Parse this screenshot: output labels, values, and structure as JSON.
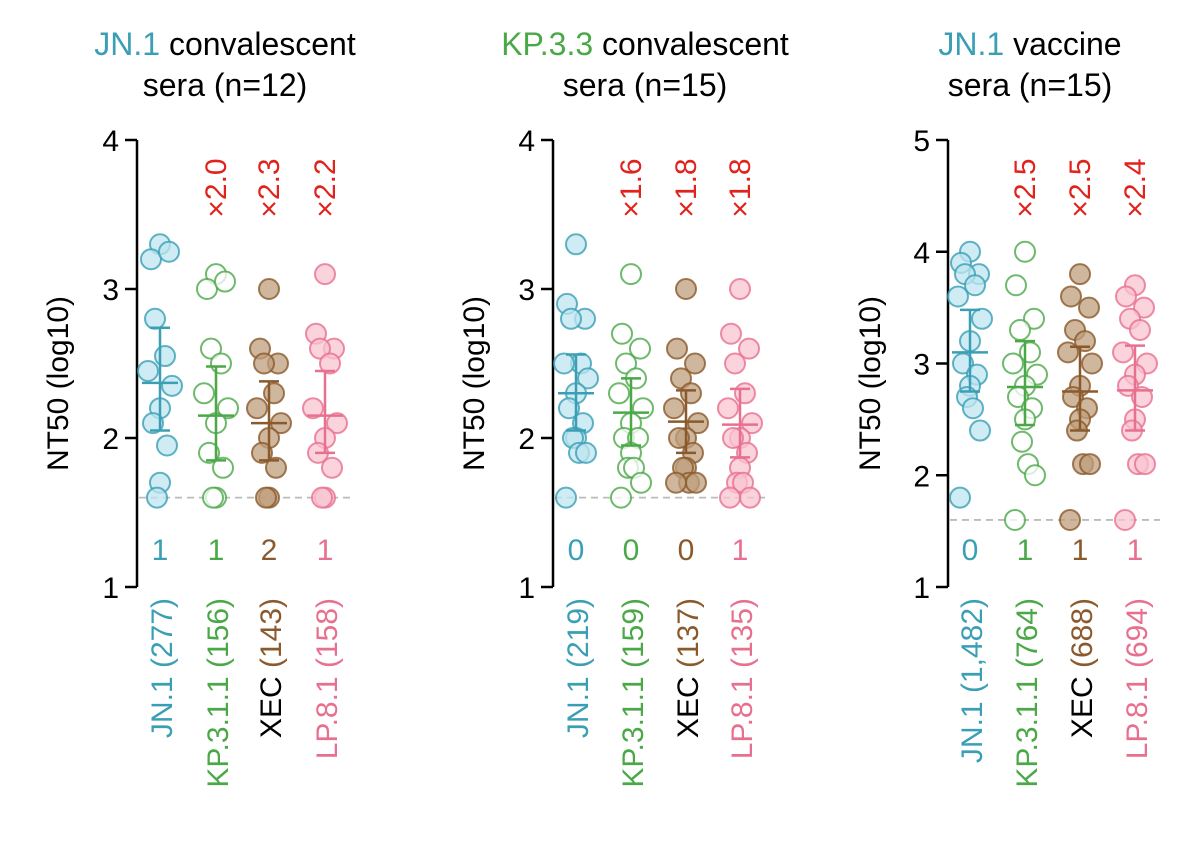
{
  "colors": {
    "jn1": "#3a9fb5",
    "jn1_fill": "#bfe6f0",
    "kp311": "#4aa847",
    "kp311_fill": "#ffffff",
    "xec": "#8a5a2c",
    "xec_fill": "#bf9f7d",
    "lp81": "#e8708f",
    "lp81_fill": "#f8c4d2",
    "fold": "#e0231c",
    "axis": "#000000",
    "lod": "#bbbbbb"
  },
  "chart_data": [
    {
      "type": "scatter",
      "title_parts": [
        {
          "text": "JN.1",
          "color": "jn1"
        },
        {
          "text": " convalescent",
          "color": "axis"
        }
      ],
      "title_line2": "sera (n=12)",
      "ylabel": "NT50 (log10)",
      "ylim": [
        1,
        4
      ],
      "yticks": [
        "1",
        "2",
        "3",
        "4"
      ],
      "lod": 1.6,
      "categories": [
        {
          "name": "JN.1",
          "count": "(277)",
          "color": "jn1",
          "fill": "jn1_fill",
          "fold": "",
          "below_lod": "1",
          "mean": 2.37,
          "err": [
            2.05,
            2.74
          ],
          "points": [
            3.3,
            3.2,
            3.25,
            2.8,
            2.55,
            2.45,
            2.35,
            2.2,
            2.1,
            1.95,
            1.7,
            1.6
          ]
        },
        {
          "name": "KP.3.1.1",
          "count": "(156)",
          "color": "kp311",
          "fill": "kp311_fill",
          "fold": "×2.0",
          "below_lod": "1",
          "mean": 2.15,
          "err": [
            1.85,
            2.48
          ],
          "points": [
            3.1,
            3.0,
            3.05,
            2.6,
            2.5,
            2.3,
            2.2,
            2.1,
            1.9,
            1.8,
            1.6,
            1.6
          ]
        },
        {
          "name": "XEC",
          "count": "(143)",
          "color": "xec",
          "fill": "xec_fill",
          "fold": "×2.3",
          "below_lod": "2",
          "mean": 2.1,
          "err": [
            1.85,
            2.38
          ],
          "points": [
            3.0,
            2.6,
            2.5,
            2.5,
            2.3,
            2.2,
            2.1,
            2.0,
            1.9,
            1.8,
            1.6,
            1.6
          ]
        },
        {
          "name": "LP.8.1",
          "count": "(158)",
          "color": "lp81",
          "fill": "lp81_fill",
          "fold": "×2.2",
          "below_lod": "1",
          "mean": 2.15,
          "err": [
            1.9,
            2.45
          ],
          "points": [
            3.1,
            2.7,
            2.6,
            2.6,
            2.5,
            2.2,
            2.1,
            2.0,
            1.9,
            1.8,
            1.6,
            1.6
          ]
        }
      ]
    },
    {
      "type": "scatter",
      "title_parts": [
        {
          "text": "KP.3.3",
          "color": "kp311"
        },
        {
          "text": " convalescent",
          "color": "axis"
        }
      ],
      "title_line2": "sera (n=15)",
      "ylabel": "NT50 (log10)",
      "ylim": [
        1,
        4
      ],
      "yticks": [
        "1",
        "2",
        "3",
        "4"
      ],
      "lod": 1.6,
      "categories": [
        {
          "name": "JN.1",
          "count": "(219)",
          "color": "jn1",
          "fill": "jn1_fill",
          "fold": "",
          "below_lod": "0",
          "mean": 2.3,
          "err": [
            2.05,
            2.56
          ],
          "points": [
            3.3,
            2.9,
            2.8,
            2.8,
            2.5,
            2.5,
            2.4,
            2.3,
            2.2,
            2.1,
            2.0,
            2.0,
            1.9,
            1.9,
            1.6
          ]
        },
        {
          "name": "KP.3.1.1",
          "count": "(159)",
          "color": "kp311",
          "fill": "kp311_fill",
          "fold": "×1.6",
          "below_lod": "0",
          "mean": 2.17,
          "err": [
            1.95,
            2.4
          ],
          "points": [
            3.1,
            2.7,
            2.6,
            2.5,
            2.4,
            2.3,
            2.2,
            2.1,
            2.0,
            2.0,
            1.9,
            1.8,
            1.8,
            1.7,
            1.6
          ]
        },
        {
          "name": "XEC",
          "count": "(137)",
          "color": "xec",
          "fill": "xec_fill",
          "fold": "×1.8",
          "below_lod": "0",
          "mean": 2.11,
          "err": [
            1.9,
            2.32
          ],
          "points": [
            3.0,
            2.6,
            2.5,
            2.4,
            2.3,
            2.2,
            2.1,
            2.0,
            2.0,
            1.9,
            1.8,
            1.8,
            1.7,
            1.7,
            1.7
          ]
        },
        {
          "name": "LP.8.1",
          "count": "(135)",
          "color": "lp81",
          "fill": "lp81_fill",
          "fold": "×1.8",
          "below_lod": "1",
          "mean": 2.09,
          "err": [
            1.87,
            2.33
          ],
          "points": [
            3.0,
            2.7,
            2.6,
            2.5,
            2.3,
            2.2,
            2.1,
            2.0,
            2.0,
            1.9,
            1.8,
            1.7,
            1.7,
            1.6,
            1.6
          ]
        }
      ]
    },
    {
      "type": "scatter",
      "title_parts": [
        {
          "text": "JN.1",
          "color": "jn1"
        },
        {
          "text": " vaccine",
          "color": "axis"
        }
      ],
      "title_line2": "sera (n=15)",
      "ylabel": "NT50 (log10)",
      "ylim": [
        1,
        5
      ],
      "yticks": [
        "1",
        "2",
        "3",
        "4",
        "5"
      ],
      "lod": 1.6,
      "categories": [
        {
          "name": "JN.1",
          "count": "(1,482)",
          "color": "jn1",
          "fill": "jn1_fill",
          "fold": "",
          "below_lod": "0",
          "mean": 3.1,
          "err": [
            2.75,
            3.48
          ],
          "points": [
            4.0,
            3.9,
            3.8,
            3.8,
            3.7,
            3.6,
            3.4,
            3.2,
            3.0,
            2.9,
            2.8,
            2.7,
            2.6,
            2.4,
            1.8
          ]
        },
        {
          "name": "KP.3.1.1",
          "count": "(764)",
          "color": "kp311",
          "fill": "kp311_fill",
          "fold": "×2.5",
          "below_lod": "1",
          "mean": 2.79,
          "err": [
            2.45,
            3.2
          ],
          "points": [
            4.0,
            3.7,
            3.4,
            3.3,
            3.1,
            3.0,
            2.9,
            2.8,
            2.7,
            2.6,
            2.5,
            2.3,
            2.1,
            2.0,
            1.6
          ]
        },
        {
          "name": "XEC",
          "count": "(688)",
          "color": "xec",
          "fill": "xec_fill",
          "fold": "×2.5",
          "below_lod": "1",
          "mean": 2.75,
          "err": [
            2.4,
            3.15
          ],
          "points": [
            3.8,
            3.6,
            3.5,
            3.3,
            3.2,
            3.1,
            3.0,
            2.8,
            2.7,
            2.6,
            2.5,
            2.4,
            2.1,
            2.1,
            1.6
          ]
        },
        {
          "name": "LP.8.1",
          "count": "(694)",
          "color": "lp81",
          "fill": "lp81_fill",
          "fold": "×2.4",
          "below_lod": "1",
          "mean": 2.76,
          "err": [
            2.4,
            3.16
          ],
          "points": [
            3.7,
            3.6,
            3.5,
            3.4,
            3.3,
            3.1,
            3.0,
            2.9,
            2.8,
            2.7,
            2.5,
            2.4,
            2.1,
            2.1,
            1.6
          ]
        }
      ]
    }
  ]
}
